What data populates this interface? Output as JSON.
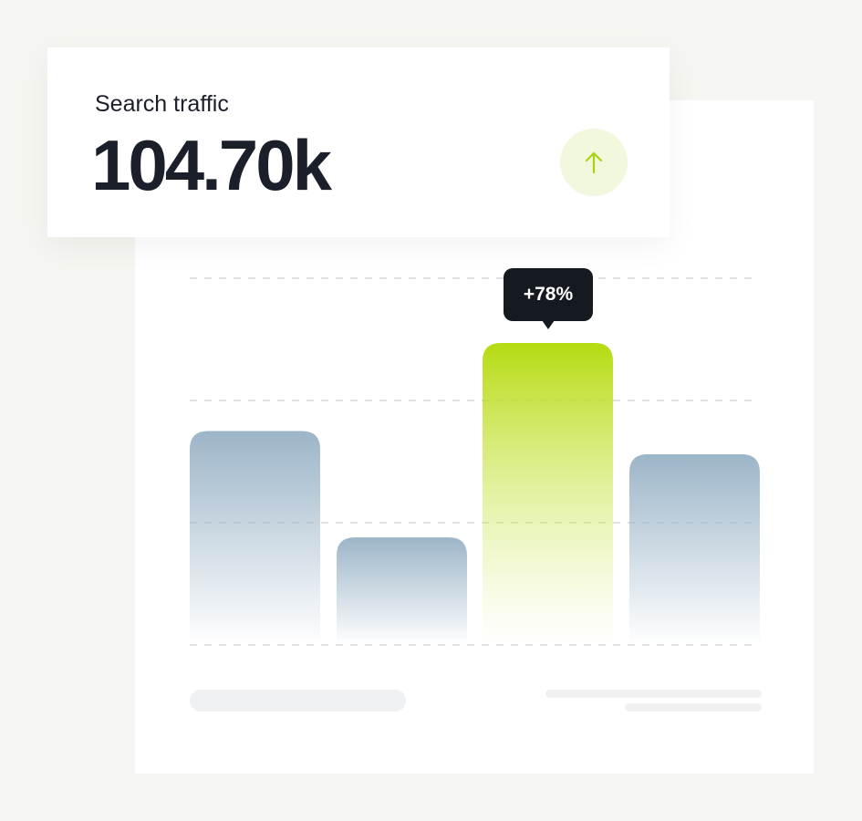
{
  "card": {
    "title": "Search traffic",
    "value": "104.70k",
    "trend_icon": "arrow-up-icon"
  },
  "colors": {
    "accent": "#b5db10",
    "bar": "#9cb5c8",
    "text": "#1b1f2a",
    "tooltip_bg": "#151920"
  },
  "chart_data": {
    "type": "bar",
    "categories": [
      "",
      "",
      "",
      ""
    ],
    "values": [
      1.75,
      0.88,
      2.47,
      1.56
    ],
    "highlight_index": 2,
    "annotation": "+78%",
    "ylim": [
      0,
      3
    ],
    "grid": true,
    "title": "",
    "xlabel": "",
    "ylabel": ""
  }
}
